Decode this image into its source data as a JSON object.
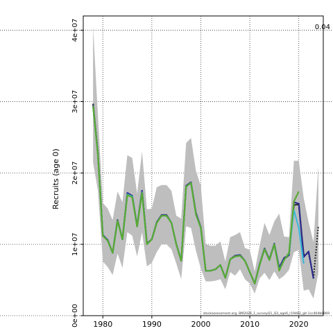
{
  "chart_data": {
    "type": "line",
    "ylabel": "Recruits (age 0)",
    "corner_value": "0.04",
    "footnote": "stockassessment.org, BM2026_1_surveyQ1_Q3_age6_r19482_git:1cc464b8069",
    "xlim": [
      1976,
      2025
    ],
    "ylim": [
      0,
      42000000
    ],
    "x_ticks": [
      1980,
      1990,
      2000,
      2010,
      2020
    ],
    "x_tick_labels": [
      "1980",
      "1990",
      "2000",
      "2010",
      "2020"
    ],
    "y_ticks": [
      0,
      10000000,
      20000000,
      30000000,
      40000000
    ],
    "y_tick_labels": [
      "0e+00",
      "1e+07",
      "2e+07",
      "3e+07",
      "4e+07"
    ],
    "grid": true,
    "confidence_band": {
      "x": [
        1978,
        1979,
        1980,
        1981,
        1982,
        1983,
        1984,
        1985,
        1986,
        1987,
        1988,
        1989,
        1990,
        1991,
        1992,
        1993,
        1994,
        1995,
        1996,
        1997,
        1998,
        1999,
        2000,
        2001,
        2002,
        2003,
        2004,
        2005,
        2006,
        2007,
        2008,
        2009,
        2010,
        2011,
        2012,
        2013,
        2014,
        2015,
        2016,
        2017,
        2018,
        2019,
        2020,
        2021,
        2022,
        2023,
        2024
      ],
      "lower": [
        21500000,
        17500000,
        7600000,
        6800000,
        5700000,
        8700000,
        6700000,
        11700000,
        11200000,
        8300000,
        11700000,
        6900000,
        7400000,
        8900000,
        10000000,
        10000000,
        9300000,
        7300000,
        5100000,
        12500000,
        12300000,
        9100000,
        6600000,
        4800000,
        4800000,
        4900000,
        5100000,
        3700000,
        6100000,
        5600000,
        6500000,
        5100000,
        4500000,
        3100000,
        5200000,
        6000000,
        5000000,
        6200000,
        5100000,
        5600000,
        6400000,
        8900000,
        9200000,
        3500000,
        3700000,
        2400000,
        6000000
      ],
      "upper": [
        40500000,
        28000000,
        15800000,
        15000000,
        13400000,
        17400000,
        15900000,
        22500000,
        22100000,
        17100000,
        23000000,
        14900000,
        15000000,
        18000000,
        18300000,
        18300000,
        17500000,
        14000000,
        13600000,
        24200000,
        24900000,
        20300000,
        18200000,
        10000000,
        9800000,
        9800000,
        10400000,
        7600000,
        11000000,
        11300000,
        11700000,
        9500000,
        9200000,
        6200000,
        9800000,
        13000000,
        11300000,
        13200000,
        14300000,
        11100000,
        11000000,
        21700000,
        21700000,
        16500000,
        13100000,
        10300000,
        21000000
      ]
    },
    "series": [
      {
        "color": "#333333",
        "x": [
          1978,
          1979,
          1980,
          1981,
          1982,
          1983,
          1984,
          1985,
          1986,
          1987,
          1988,
          1989,
          1990,
          1991,
          1992,
          1993,
          1994,
          1995,
          1996,
          1997,
          1998,
          1999,
          2000,
          2001,
          2002,
          2003,
          2004,
          2005,
          2006,
          2007,
          2008,
          2009,
          2010,
          2011,
          2012,
          2013,
          2014,
          2015,
          2016,
          2017,
          2018,
          2019,
          2020,
          2021,
          2022,
          2023,
          2024
        ],
        "values": [
          29700000,
          22700000,
          11200000,
          10500000,
          8800000,
          13400000,
          10700000,
          17100000,
          16700000,
          12500000,
          17500000,
          10100000,
          10700000,
          13000000,
          14100000,
          14100000,
          13000000,
          10000000,
          7700000,
          18200000,
          18600000,
          14300000,
          12300000,
          6300000,
          6300000,
          6500000,
          7100000,
          5300000,
          7900000,
          8400000,
          8500000,
          7700000,
          6100000,
          4500000,
          7100000,
          9400000,
          7800000,
          10000000,
          6500000,
          7900000,
          8500000,
          15500000,
          15600000,
          8500000,
          8800000,
          5300000,
          12600000
        ],
        "dashed_from": 2021
      },
      {
        "color": "#2c2c8c",
        "x": [
          1978,
          1979,
          1980,
          1981,
          1982,
          1983,
          1984,
          1985,
          1986,
          1987,
          1988,
          1989,
          1990,
          1991,
          1992,
          1993,
          1994,
          1995,
          1996,
          1997,
          1998,
          1999,
          2000,
          2001,
          2002,
          2003,
          2004,
          2005,
          2006,
          2007,
          2008,
          2009,
          2010,
          2011,
          2012,
          2013,
          2014,
          2015,
          2016,
          2017,
          2018,
          2019,
          2020,
          2021,
          2022,
          2023
        ],
        "values": [
          29500000,
          22600000,
          11300000,
          10600000,
          8800000,
          13400000,
          10700000,
          17200000,
          16800000,
          12600000,
          17500000,
          10100000,
          10700000,
          13100000,
          14100000,
          14100000,
          13000000,
          10000000,
          7700000,
          18200000,
          18700000,
          14400000,
          12400000,
          6300000,
          6300000,
          6500000,
          7100000,
          5300000,
          7900000,
          8400000,
          8500000,
          7700000,
          6100000,
          4500000,
          7200000,
          9400000,
          7900000,
          10100000,
          6700000,
          8100000,
          8500000,
          15900000,
          15700000,
          8200000,
          9000000,
          5200000
        ]
      },
      {
        "color": "#3cb8d8",
        "x": [
          1978,
          1979,
          1980,
          1981,
          1982,
          1983,
          1984,
          1985,
          1986,
          1987,
          1988,
          1989,
          1990,
          1991,
          1992,
          1993,
          1994,
          1995,
          1996,
          1997,
          1998,
          1999,
          2000,
          2001,
          2002,
          2003,
          2004,
          2005,
          2006,
          2007,
          2008,
          2009,
          2010,
          2011,
          2012,
          2013,
          2014,
          2015,
          2016,
          2017,
          2018,
          2019,
          2020,
          2021
        ],
        "values": [
          29400000,
          22500000,
          11200000,
          10500000,
          8800000,
          13300000,
          10700000,
          17000000,
          16700000,
          12500000,
          17300000,
          10000000,
          10700000,
          13000000,
          14000000,
          14000000,
          13000000,
          10000000,
          7700000,
          18100000,
          18600000,
          14200000,
          12300000,
          6300000,
          6300000,
          6500000,
          7100000,
          5300000,
          7900000,
          8300000,
          8400000,
          7700000,
          6100000,
          4500000,
          7100000,
          9300000,
          7800000,
          10000000,
          6400000,
          7800000,
          8700000,
          14800000,
          12300000,
          7300000
        ]
      },
      {
        "color": "#5aaa32",
        "x": [
          1978,
          1979,
          1980,
          1981,
          1982,
          1983,
          1984,
          1985,
          1986,
          1987,
          1988,
          1989,
          1990,
          1991,
          1992,
          1993,
          1994,
          1995,
          1996,
          1997,
          1998,
          1999,
          2000,
          2001,
          2002,
          2003,
          2004,
          2005,
          2006,
          2007,
          2008,
          2009,
          2010,
          2011,
          2012,
          2013,
          2014,
          2015,
          2016,
          2017,
          2018,
          2019,
          2020
        ],
        "values": [
          29400000,
          22500000,
          11200000,
          10500000,
          8800000,
          13300000,
          10700000,
          16900000,
          16600000,
          12500000,
          17200000,
          10000000,
          10700000,
          13000000,
          14000000,
          14000000,
          13000000,
          10000000,
          7700000,
          18100000,
          18600000,
          14200000,
          12300000,
          6300000,
          6300000,
          6500000,
          7100000,
          5300000,
          7900000,
          8300000,
          8400000,
          7700000,
          6100000,
          4500000,
          7100000,
          9300000,
          7800000,
          10000000,
          6300000,
          7800000,
          8800000,
          16000000,
          17400000
        ]
      }
    ]
  }
}
